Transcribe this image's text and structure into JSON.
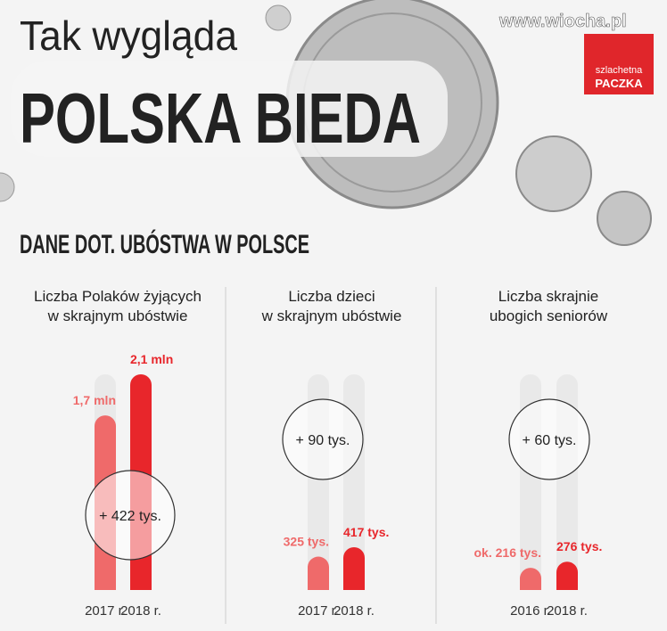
{
  "header": {
    "title_line1": "Tak wygląda",
    "title_line2": "POLSKA BIEDA",
    "section_title": "DANE DOT. UBÓSTWA W POLSCE",
    "watermark": "www.wiocha.pl",
    "logo_line1": "szlachetna",
    "logo_line2": "PACZKA"
  },
  "chart_data": [
    {
      "type": "bar",
      "title_lines": [
        "Liczba Polaków żyjących",
        "w skrajnym ubóstwie"
      ],
      "categories": [
        "2017 r.",
        "2018 r."
      ],
      "values": [
        1.7,
        2.1
      ],
      "value_labels": [
        "1,7 mln",
        "2,1 mln"
      ],
      "ylim": [
        0,
        2.1
      ],
      "annotation": "+ 422 tys.",
      "colors": [
        "#ef6a6a",
        "#e8262b"
      ]
    },
    {
      "type": "bar",
      "title_lines": [
        "Liczba dzieci",
        "w skrajnym ubóstwie"
      ],
      "categories": [
        "2017 r.",
        "2018 r."
      ],
      "values": [
        325,
        417
      ],
      "value_labels": [
        "325 tys.",
        "417 tys."
      ],
      "ylim": [
        0,
        2100
      ],
      "annotation": "+ 90 tys.",
      "colors": [
        "#ef6a6a",
        "#e8262b"
      ]
    },
    {
      "type": "bar",
      "title_lines": [
        "Liczba skrajnie",
        "ubogich seniorów"
      ],
      "categories": [
        "2016 r.",
        "2018 r."
      ],
      "values": [
        216,
        276
      ],
      "value_labels": [
        "ok. 216 tys.",
        "276 tys."
      ],
      "ylim": [
        0,
        2100
      ],
      "annotation": "+ 60 tys.",
      "colors": [
        "#ef6a6a",
        "#e8262b"
      ]
    }
  ]
}
